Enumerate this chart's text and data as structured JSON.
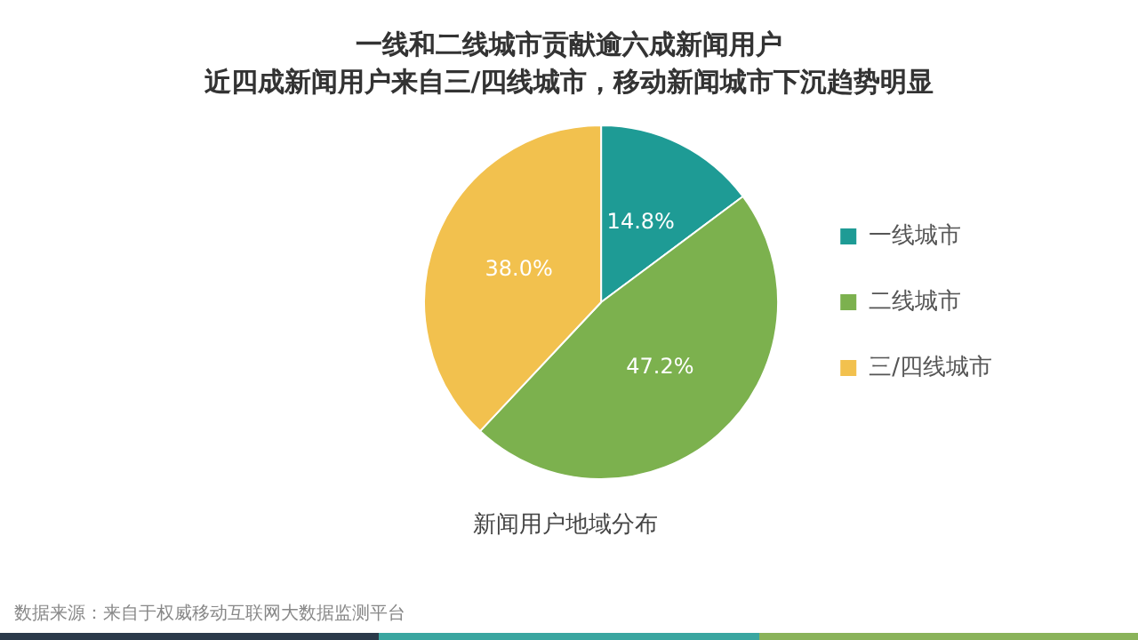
{
  "chart_data": {
    "type": "pie",
    "title": "一线和二线城市贡献逾六成新闻用户",
    "subtitle": "近四成新闻用户来自三/四线城市，移动新闻城市下沉趋势明显",
    "categories": [
      "一线城市",
      "二线城市",
      "三/四线城市"
    ],
    "values": [
      14.8,
      47.2,
      38.0
    ],
    "value_labels": [
      "14.8%",
      "47.2%",
      "38.0%"
    ],
    "colors": [
      "#1e9b95",
      "#7cb14e",
      "#f2c14e"
    ],
    "legend": "right",
    "annotations": [
      "新闻用户地域分布",
      "数据来源：来自于权威移动互联网大数据监测平台"
    ]
  }
}
